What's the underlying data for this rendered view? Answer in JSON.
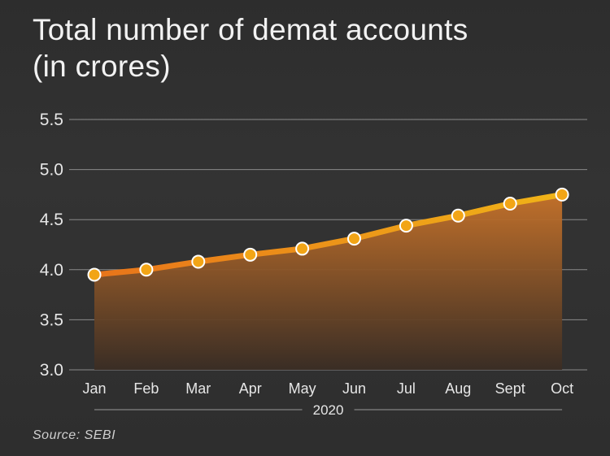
{
  "title_line1": "Total number of demat accounts",
  "title_line2": "(in crores)",
  "source": "Source: SEBI",
  "colors": {
    "background": "#2f2f2f",
    "line_start": "#e8741a",
    "line_end": "#f0b418",
    "marker_fill": "#f2a516",
    "marker_stroke": "#ffffff",
    "area_top": "#c8732a",
    "area_bottom": "#3a2d24",
    "grid": "#8a8a8a",
    "text": "#e6e6e6"
  },
  "chart_data": {
    "type": "area",
    "categories": [
      "Jan",
      "Feb",
      "Mar",
      "Apr",
      "May",
      "Jun",
      "Jul",
      "Aug",
      "Sept",
      "Oct"
    ],
    "xgroup_label": "2020",
    "values": [
      3.95,
      4.0,
      4.08,
      4.15,
      4.21,
      4.31,
      4.44,
      4.54,
      4.66,
      4.75
    ],
    "yticks": [
      "3.0",
      "3.5",
      "4.0",
      "4.5",
      "5.0",
      "5.5"
    ],
    "ylim": [
      3.0,
      5.5
    ],
    "grid": true,
    "markers": true,
    "legend": "none"
  }
}
